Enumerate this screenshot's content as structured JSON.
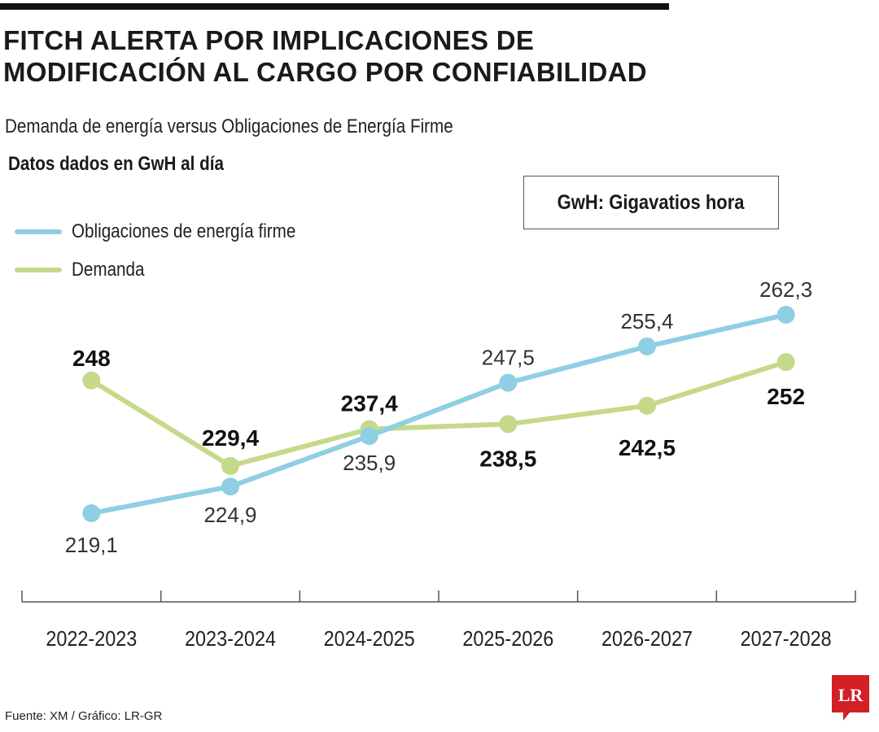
{
  "header": {
    "title_line1": "FITCH ALERTA POR IMPLICACIONES DE",
    "title_line2": "MODIFICACIÓN AL CARGO POR CONFIABILIDAD",
    "subtitle": "Demanda de energía versus Obligaciones de Energía Firme",
    "units_note": "Datos dados en GwH al día",
    "units_box": "GwH: Gigavatios hora"
  },
  "legend": [
    {
      "label": "Obligaciones de energía firme",
      "color": "#8fcfe3"
    },
    {
      "label": "Demanda",
      "color": "#c5d98a"
    }
  ],
  "chart_data": {
    "type": "line",
    "categories": [
      "2022-2023",
      "2023-2024",
      "2024-2025",
      "2025-2026",
      "2026-2027",
      "2027-2028"
    ],
    "series": [
      {
        "name": "Obligaciones de energía firme",
        "color": "#8fcfe3",
        "values": [
          219.1,
          224.9,
          235.9,
          247.5,
          255.4,
          262.3
        ],
        "labels": [
          "219,1",
          "224,9",
          "235,9",
          "247,5",
          "255,4",
          "262,3"
        ],
        "label_style": "normal"
      },
      {
        "name": "Demanda",
        "color": "#c5d98a",
        "values": [
          248,
          229.4,
          237.4,
          238.5,
          242.5,
          252
        ],
        "labels": [
          "248",
          "229,4",
          "237,4",
          "238,5",
          "242,5",
          "252"
        ],
        "label_style": "bold"
      }
    ],
    "grid": false,
    "legend_position": "top-left"
  },
  "footer": {
    "source": "Fuente: XM / Gráfico: LR-GR",
    "logo_text": "LR",
    "logo_color": "#d32027"
  }
}
